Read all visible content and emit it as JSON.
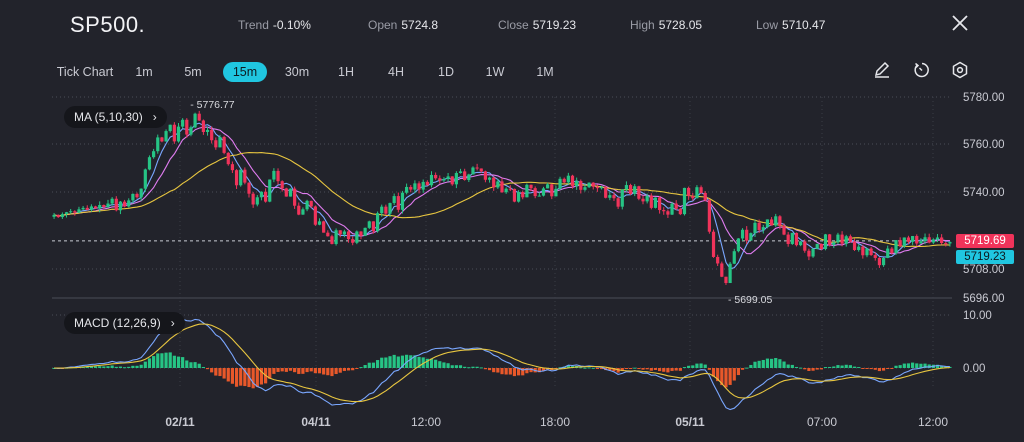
{
  "header": {
    "symbol": "SP500.",
    "trend_label": "Trend",
    "trend_value": "-0.10%",
    "open_label": "Open",
    "open_value": "5724.8",
    "close_label": "Close",
    "close_value": "5719.23",
    "high_label": "High",
    "high_value": "5728.05",
    "low_label": "Low",
    "low_value": "5710.47",
    "close_icon": "close-icon"
  },
  "toolbar": {
    "tick_chart_label": "Tick Chart",
    "timeframes": [
      "1m",
      "5m",
      "15m",
      "30m",
      "1H",
      "4H",
      "1D",
      "1W",
      "1M"
    ],
    "active_timeframe": "15m",
    "icons": [
      "pencil-icon",
      "timer-icon",
      "settings-icon"
    ]
  },
  "colors": {
    "background": "#22232b",
    "up": "#26c485",
    "down": "#f0335a",
    "accent": "#20c6e0",
    "ma5": "#7aa7ff",
    "ma10": "#e07cf0",
    "ma30": "#e8c640",
    "macd_neg": "#e8582a"
  },
  "chart_data": [
    {
      "type": "candlestick",
      "indicator_label": "MA (5,10,30)",
      "y_ticks": [
        "5780.00",
        "5760.00",
        "5740.00",
        "5708.00",
        "5696.00"
      ],
      "ylim": [
        5694,
        5782
      ],
      "x_ticks": [
        "02/11",
        "04/11",
        "12:00",
        "18:00",
        "05/11",
        "07:00",
        "12:00"
      ],
      "annotations": {
        "high_marker": "5776.77",
        "low_marker": "5699.05"
      },
      "price_labels": {
        "last": "5719.69",
        "close": "5719.23"
      },
      "close_price": [
        5730.5,
        5729.6,
        5730.8,
        5731.6,
        5732.0,
        5731.4,
        5732.8,
        5733.4,
        5732.6,
        5734.0,
        5733.1,
        5734.6,
        5733.7,
        5735.2,
        5737.2,
        5732.4,
        5736.0,
        5734.0,
        5736.5,
        5739.2,
        5737.8,
        5741.4,
        5749.4,
        5754.5,
        5757.0,
        5762.8,
        5761.1,
        5765.5,
        5768.2,
        5761.1,
        5767.4,
        5770.3,
        5764.0,
        5767.1,
        5772.9,
        5770.0,
        5765.1,
        5766.0,
        5761.6,
        5758.6,
        5763.0,
        5756.3,
        5751.6,
        5749.1,
        5742.8,
        5749.3,
        5743.9,
        5739.3,
        5734.8,
        5737.8,
        5740.1,
        5736.0,
        5745.2,
        5748.8,
        5744.5,
        5741.5,
        5738.1,
        5741.4,
        5734.3,
        5730.6,
        5732.8,
        5736.3,
        5734.0,
        5726.4,
        5727.8,
        5723.1,
        5721.6,
        5718.4,
        5724.1,
        5722.4,
        5723.6,
        5720.4,
        5718.9,
        5723.6,
        5721.8,
        5725.1,
        5727.8,
        5723.7,
        5731.2,
        5733.9,
        5731.0,
        5735.4,
        5738.3,
        5732.6,
        5739.7,
        5742.1,
        5741.0,
        5743.6,
        5741.0,
        5744.2,
        5742.8,
        5747.1,
        5745.7,
        5744.8,
        5745.4,
        5746.5,
        5743.2,
        5747.9,
        5748.6,
        5745.0,
        5747.3,
        5750.2,
        5749.8,
        5748.6,
        5745.1,
        5746.0,
        5741.9,
        5744.4,
        5739.9,
        5741.4,
        5741.3,
        5736.0,
        5740.0,
        5737.8,
        5743.0,
        5741.6,
        5738.3,
        5738.5,
        5741.5,
        5743.2,
        5738.2,
        5741.3,
        5745.5,
        5744.0,
        5746.8,
        5742.4,
        5744.6,
        5740.9,
        5742.0,
        5743.9,
        5742.2,
        5741.6,
        5742.0,
        5737.6,
        5738.7,
        5737.4,
        5733.9,
        5741.0,
        5742.9,
        5739.2,
        5742.4,
        5737.2,
        5736.1,
        5738.5,
        5733.4,
        5737.7,
        5732.5,
        5732.0,
        5730.6,
        5735.2,
        5733.0,
        5730.8,
        5741.7,
        5738.3,
        5737.4,
        5742.0,
        5739.6,
        5736.6,
        5723.5,
        5713.0,
        5710.3,
        5704.8,
        5702.2,
        5710.2,
        5715.4,
        5720.7,
        5724.3,
        5719.8,
        5722.9,
        5727.2,
        5724.2,
        5725.4,
        5728.6,
        5726.1,
        5729.9,
        5726.0,
        5722.3,
        5718.4,
        5723.0,
        5717.9,
        5719.5,
        5715.6,
        5713.2,
        5716.4,
        5718.4,
        5716.3,
        5722.4,
        5718.0,
        5719.1,
        5722.3,
        5718.5,
        5721.6,
        5719.4,
        5715.9,
        5717.3,
        5713.7,
        5716.5,
        5713.8,
        5712.6,
        5709.6,
        5712.6,
        5716.5,
        5714.6,
        5720.0,
        5717.5,
        5721.1,
        5719.3,
        5721.7,
        5718.6,
        5719.6,
        5721.2,
        5719.0,
        5720.3,
        5721.1,
        5718.8,
        5718.6,
        5719.2
      ]
    },
    {
      "type": "histogram",
      "indicator_label": "MACD (12,26,9)",
      "y_ticks": [
        "10.00",
        "0.00"
      ],
      "ylim": [
        -6.5,
        11.5
      ]
    }
  ]
}
